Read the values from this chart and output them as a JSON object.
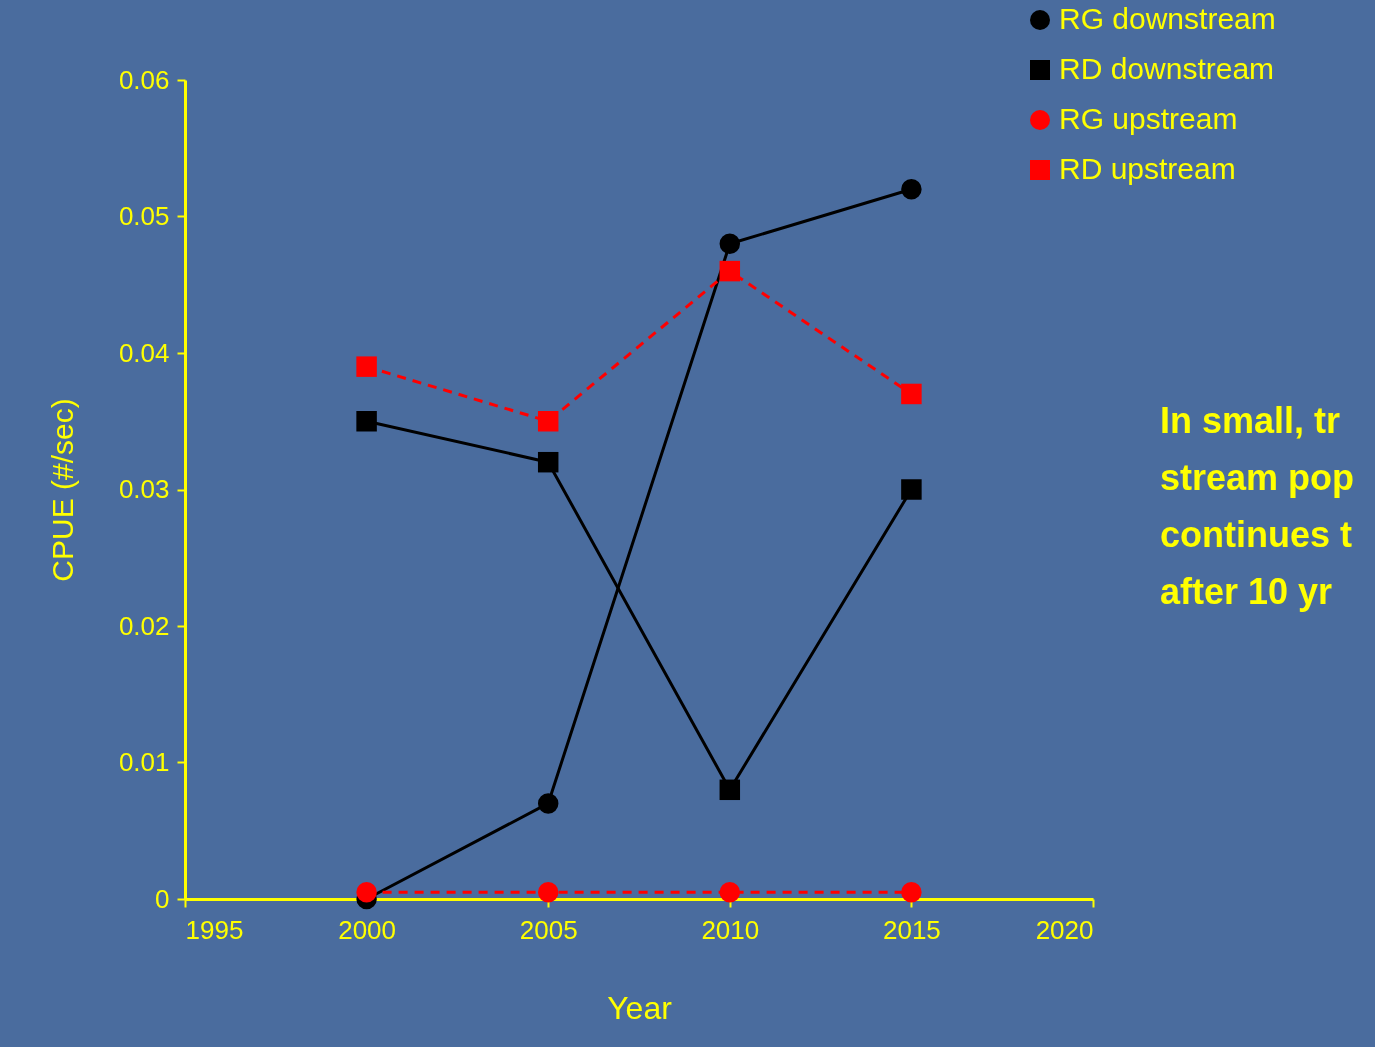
{
  "chart_data": {
    "type": "line",
    "xlabel": "Year",
    "ylabel": "CPUE (#/sec)",
    "xlim": [
      1995,
      2020
    ],
    "xticks": [
      1995,
      2000,
      2005,
      2010,
      2015,
      2020
    ],
    "ylim": [
      0,
      0.06
    ],
    "yticks": [
      0,
      0.01,
      0.02,
      0.03,
      0.04,
      0.05,
      0.06
    ],
    "x": [
      2000,
      2005,
      2010,
      2015
    ],
    "series": [
      {
        "name": "RG downstream",
        "color": "#000000",
        "marker": "circle",
        "line_style": "solid",
        "values": [
          0,
          0.007,
          0.048,
          0.052
        ]
      },
      {
        "name": "RD downstream",
        "color": "#000000",
        "marker": "square",
        "line_style": "solid",
        "values": [
          0.035,
          0.032,
          0.008,
          0.03
        ]
      },
      {
        "name": "RG upstream",
        "color": "#ff0000",
        "marker": "circle",
        "line_style": "dashed",
        "values": [
          0.0005,
          0.0005,
          0.0005,
          0.0005
        ]
      },
      {
        "name": "RD upstream",
        "color": "#ff0000",
        "marker": "square",
        "line_style": "dashed",
        "values": [
          0.039,
          0.035,
          0.046,
          0.037
        ]
      }
    ],
    "annotations": [
      "In small, tr",
      "stream pop",
      "continues t",
      "after 10 yr"
    ],
    "legend": "top right",
    "grid": false
  }
}
